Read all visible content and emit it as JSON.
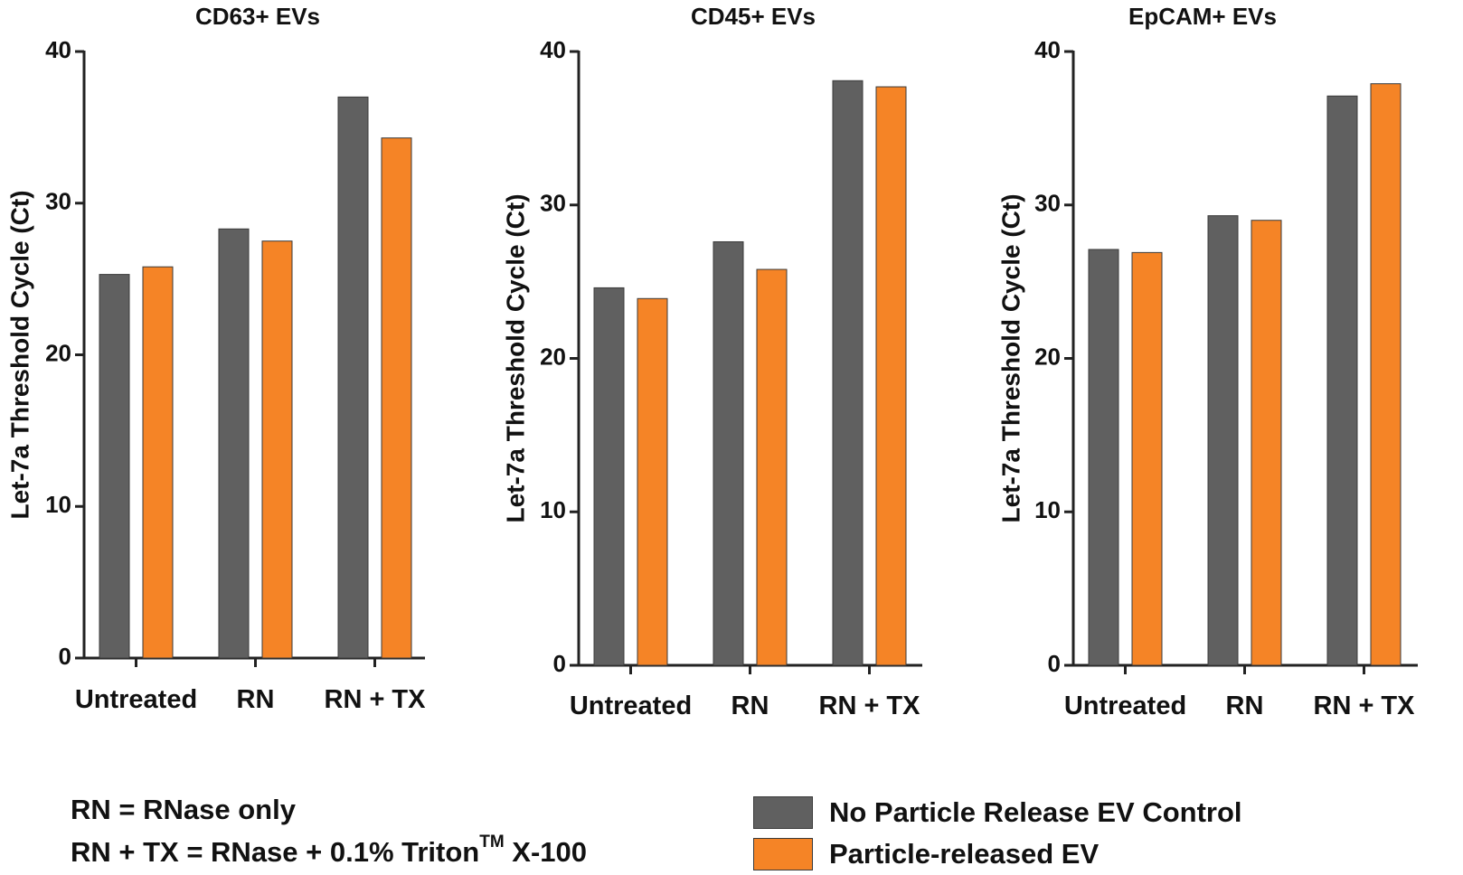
{
  "colors": {
    "control": "#606060",
    "released": "#F58426",
    "axis": "#222222"
  },
  "chart_data": [
    {
      "type": "bar",
      "title": "CD63+ EVs",
      "ylabel": "Let-7a Threshold Cycle (Ct)",
      "xlabel": "",
      "categories": [
        "Untreated",
        "RN",
        "RN + TX"
      ],
      "ylim": [
        0,
        40
      ],
      "yticks": [
        0,
        10,
        20,
        30,
        40
      ],
      "series": [
        {
          "name": "No Particle Release EV Control",
          "values": [
            25.3,
            28.3,
            37.0
          ]
        },
        {
          "name": "Particle-released EV",
          "values": [
            25.8,
            27.5,
            34.3
          ]
        }
      ]
    },
    {
      "type": "bar",
      "title": "CD45+ EVs",
      "ylabel": "Let-7a Threshold Cycle (Ct)",
      "xlabel": "",
      "categories": [
        "Untreated",
        "RN",
        "RN + TX"
      ],
      "ylim": [
        0,
        40
      ],
      "yticks": [
        0,
        10,
        20,
        30,
        40
      ],
      "series": [
        {
          "name": "No Particle Release EV Control",
          "values": [
            24.6,
            27.6,
            38.1
          ]
        },
        {
          "name": "Particle-released EV",
          "values": [
            23.9,
            25.8,
            37.7
          ]
        }
      ]
    },
    {
      "type": "bar",
      "title": "EpCAM+ EVs",
      "ylabel": "Let-7a Threshold Cycle (Ct)",
      "xlabel": "",
      "categories": [
        "Untreated",
        "RN",
        "RN + TX"
      ],
      "ylim": [
        0,
        40
      ],
      "yticks": [
        0,
        10,
        20,
        30,
        40
      ],
      "series": [
        {
          "name": "No Particle Release EV Control",
          "values": [
            27.1,
            29.3,
            37.1
          ]
        },
        {
          "name": "Particle-released EV",
          "values": [
            26.9,
            29.0,
            37.9
          ]
        }
      ]
    }
  ],
  "notes": {
    "rn": "RN = RNase only",
    "rntx_prefix": "RN + TX = RNase + 0.1% Triton",
    "rntx_sup": "TM",
    "rntx_suffix": " X-100"
  },
  "legend": {
    "control_label": "No Particle Release EV Control",
    "released_label": "Particle-released EV"
  }
}
